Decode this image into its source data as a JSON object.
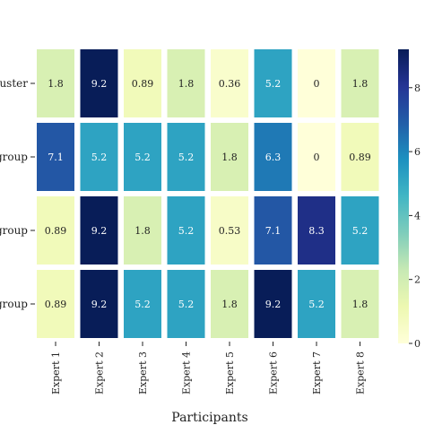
{
  "chart_data": {
    "type": "heatmap",
    "title": "",
    "xlabel": "Participants",
    "ylabel": "",
    "x_categories": [
      "Expert 1",
      "Expert 2",
      "Expert 3",
      "Expert 4",
      "Expert 5",
      "Expert 6",
      "Expert 7",
      "Expert 8"
    ],
    "y_categories": [
      "cluster",
      "group",
      "group",
      "group"
    ],
    "values": [
      [
        "1.8",
        "9.2",
        "0.89",
        "1.8",
        "0.36",
        "5.2",
        "0",
        "1.8"
      ],
      [
        "7.1",
        "5.2",
        "5.2",
        "5.2",
        "1.8",
        "6.3",
        "0",
        "0.89"
      ],
      [
        "0.89",
        "9.2",
        "1.8",
        "5.2",
        "0.53",
        "7.1",
        "8.3",
        "5.2"
      ],
      [
        "0.89",
        "9.2",
        "5.2",
        "5.2",
        "1.8",
        "9.2",
        "5.2",
        "1.8"
      ]
    ],
    "vmin": 0,
    "vmax": 9.2,
    "colormap": "YlGnBu",
    "colorbar_ticks": [
      "0",
      "2",
      "4",
      "6",
      "8"
    ],
    "grid": false
  },
  "colors": {
    "ylgnbu": [
      "#ffffd9",
      "#edf8b1",
      "#c7e9b4",
      "#7fcdbb",
      "#41b6c4",
      "#1d91c0",
      "#225ea8",
      "#253494",
      "#081d58"
    ],
    "cell_text_light": "#ffffff",
    "cell_text_dark": "#222222"
  }
}
